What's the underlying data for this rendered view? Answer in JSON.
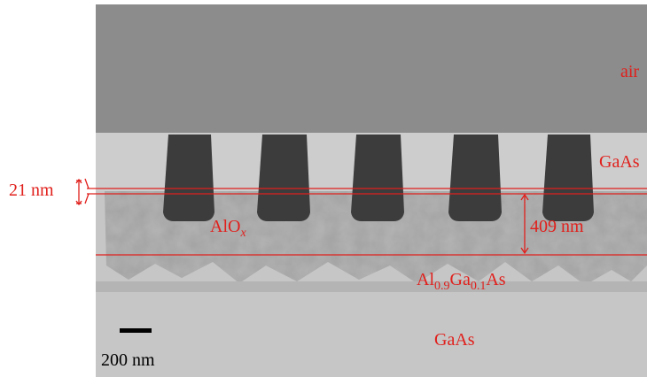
{
  "labels": {
    "air": "air",
    "gaas_top": "GaAs",
    "thickness_thin": "21 nm",
    "alox": {
      "base": "AlO",
      "sub": "x"
    },
    "thickness_thick": "409 nm",
    "algaas": {
      "parts": [
        "Al",
        "0.9",
        "Ga",
        "0.1",
        "As"
      ]
    },
    "gaas_bottom": "GaAs",
    "scale_bar": "200 nm"
  }
}
